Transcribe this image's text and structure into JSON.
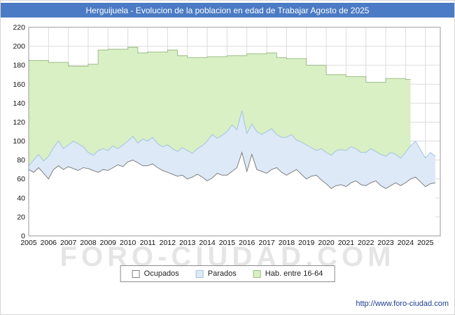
{
  "title_bar": {
    "text": "Herguijuela - Evolucion de la poblacion en edad de Trabajar Agosto de 2025",
    "bg": "#4b7bc4",
    "fg": "#ffffff"
  },
  "watermark": "FORO-CIUDAD.COM",
  "footer": {
    "url": "http://www.foro-ciudad.com"
  },
  "chart_data": {
    "type": "area",
    "title": "Herguijuela - Evolucion de la poblacion en edad de Trabajar Agosto de 2025",
    "xlabel": "",
    "ylabel": "",
    "ylim": [
      0,
      220
    ],
    "x_range": [
      2005,
      2025.75
    ],
    "grid": true,
    "legend_position": "bottom",
    "y_ticks": [
      0,
      20,
      40,
      60,
      80,
      100,
      120,
      140,
      160,
      180,
      200,
      220
    ],
    "x_ticks": [
      2005,
      2006,
      2007,
      2008,
      2009,
      2010,
      2011,
      2012,
      2013,
      2014,
      2015,
      2016,
      2017,
      2018,
      2019,
      2020,
      2021,
      2022,
      2023,
      2024,
      2025
    ],
    "x": [
      2005,
      2005.25,
      2005.5,
      2005.75,
      2006,
      2006.25,
      2006.5,
      2006.75,
      2007,
      2007.25,
      2007.5,
      2007.75,
      2008,
      2008.25,
      2008.5,
      2008.75,
      2009,
      2009.25,
      2009.5,
      2009.75,
      2010,
      2010.25,
      2010.5,
      2010.75,
      2011,
      2011.25,
      2011.5,
      2011.75,
      2012,
      2012.25,
      2012.5,
      2012.75,
      2013,
      2013.25,
      2013.5,
      2013.75,
      2014,
      2014.25,
      2014.5,
      2014.75,
      2015,
      2015.25,
      2015.5,
      2015.75,
      2016,
      2016.25,
      2016.5,
      2016.75,
      2017,
      2017.25,
      2017.5,
      2017.75,
      2018,
      2018.25,
      2018.5,
      2018.75,
      2019,
      2019.25,
      2019.5,
      2019.75,
      2020,
      2020.25,
      2020.5,
      2020.75,
      2021,
      2021.25,
      2021.5,
      2021.75,
      2022,
      2022.25,
      2022.5,
      2022.75,
      2023,
      2023.25,
      2023.5,
      2023.75,
      2024,
      2024.25,
      2024.5,
      2024.75,
      2025,
      2025.25,
      2025.5
    ],
    "series": [
      {
        "name": "Hab. entre 16-64",
        "fill": "#d9efc4",
        "stroke": "#9cbf85",
        "step": true,
        "values": [
          185,
          185,
          185,
          185,
          183,
          183,
          183,
          183,
          179,
          179,
          179,
          179,
          181,
          181,
          196,
          196,
          197,
          197,
          197,
          197,
          199,
          199,
          193,
          193,
          194,
          194,
          194,
          194,
          196,
          196,
          190,
          190,
          188,
          188,
          188,
          188,
          189,
          189,
          189,
          189,
          190,
          190,
          190,
          190,
          192,
          192,
          192,
          192,
          193,
          193,
          188,
          188,
          187,
          187,
          187,
          187,
          180,
          180,
          180,
          180,
          170,
          170,
          170,
          170,
          168,
          168,
          168,
          168,
          162,
          162,
          162,
          162,
          166,
          166,
          166,
          166,
          165,
          165,
          null,
          null,
          null,
          null,
          null
        ]
      },
      {
        "name": "Parados",
        "fill": "#dde9f6",
        "stroke": "#a3c4e2",
        "step": false,
        "values": [
          74,
          80,
          86,
          79,
          84,
          93,
          100,
          92,
          96,
          100,
          97,
          94,
          88,
          85,
          90,
          92,
          90,
          95,
          92,
          96,
          100,
          105,
          98,
          102,
          100,
          104,
          97,
          94,
          96,
          92,
          89,
          93,
          90,
          87,
          92,
          95,
          100,
          107,
          103,
          106,
          110,
          117,
          112,
          132,
          108,
          118,
          110,
          107,
          110,
          113,
          107,
          104,
          104,
          107,
          101,
          99,
          96,
          93,
          90,
          92,
          88,
          85,
          90,
          91,
          90,
          94,
          92,
          88,
          88,
          92,
          89,
          86,
          84,
          88,
          86,
          82,
          88,
          95,
          100,
          91,
          82,
          88,
          84
        ]
      },
      {
        "name": "Ocupados",
        "fill": "#ffffff",
        "stroke": "#7f7f7f",
        "step": false,
        "values": [
          70,
          67,
          72,
          66,
          60,
          70,
          74,
          70,
          73,
          71,
          69,
          72,
          71,
          69,
          67,
          70,
          69,
          72,
          75,
          73,
          78,
          80,
          77,
          74,
          74,
          76,
          72,
          69,
          67,
          65,
          63,
          64,
          60,
          62,
          65,
          62,
          58,
          61,
          66,
          64,
          64,
          68,
          72,
          88,
          68,
          86,
          70,
          68,
          66,
          70,
          72,
          67,
          64,
          67,
          70,
          65,
          60,
          63,
          64,
          59,
          55,
          50,
          53,
          54,
          52,
          56,
          58,
          54,
          53,
          56,
          58,
          53,
          50,
          53,
          56,
          53,
          56,
          60,
          62,
          57,
          52,
          55,
          56
        ]
      }
    ]
  }
}
